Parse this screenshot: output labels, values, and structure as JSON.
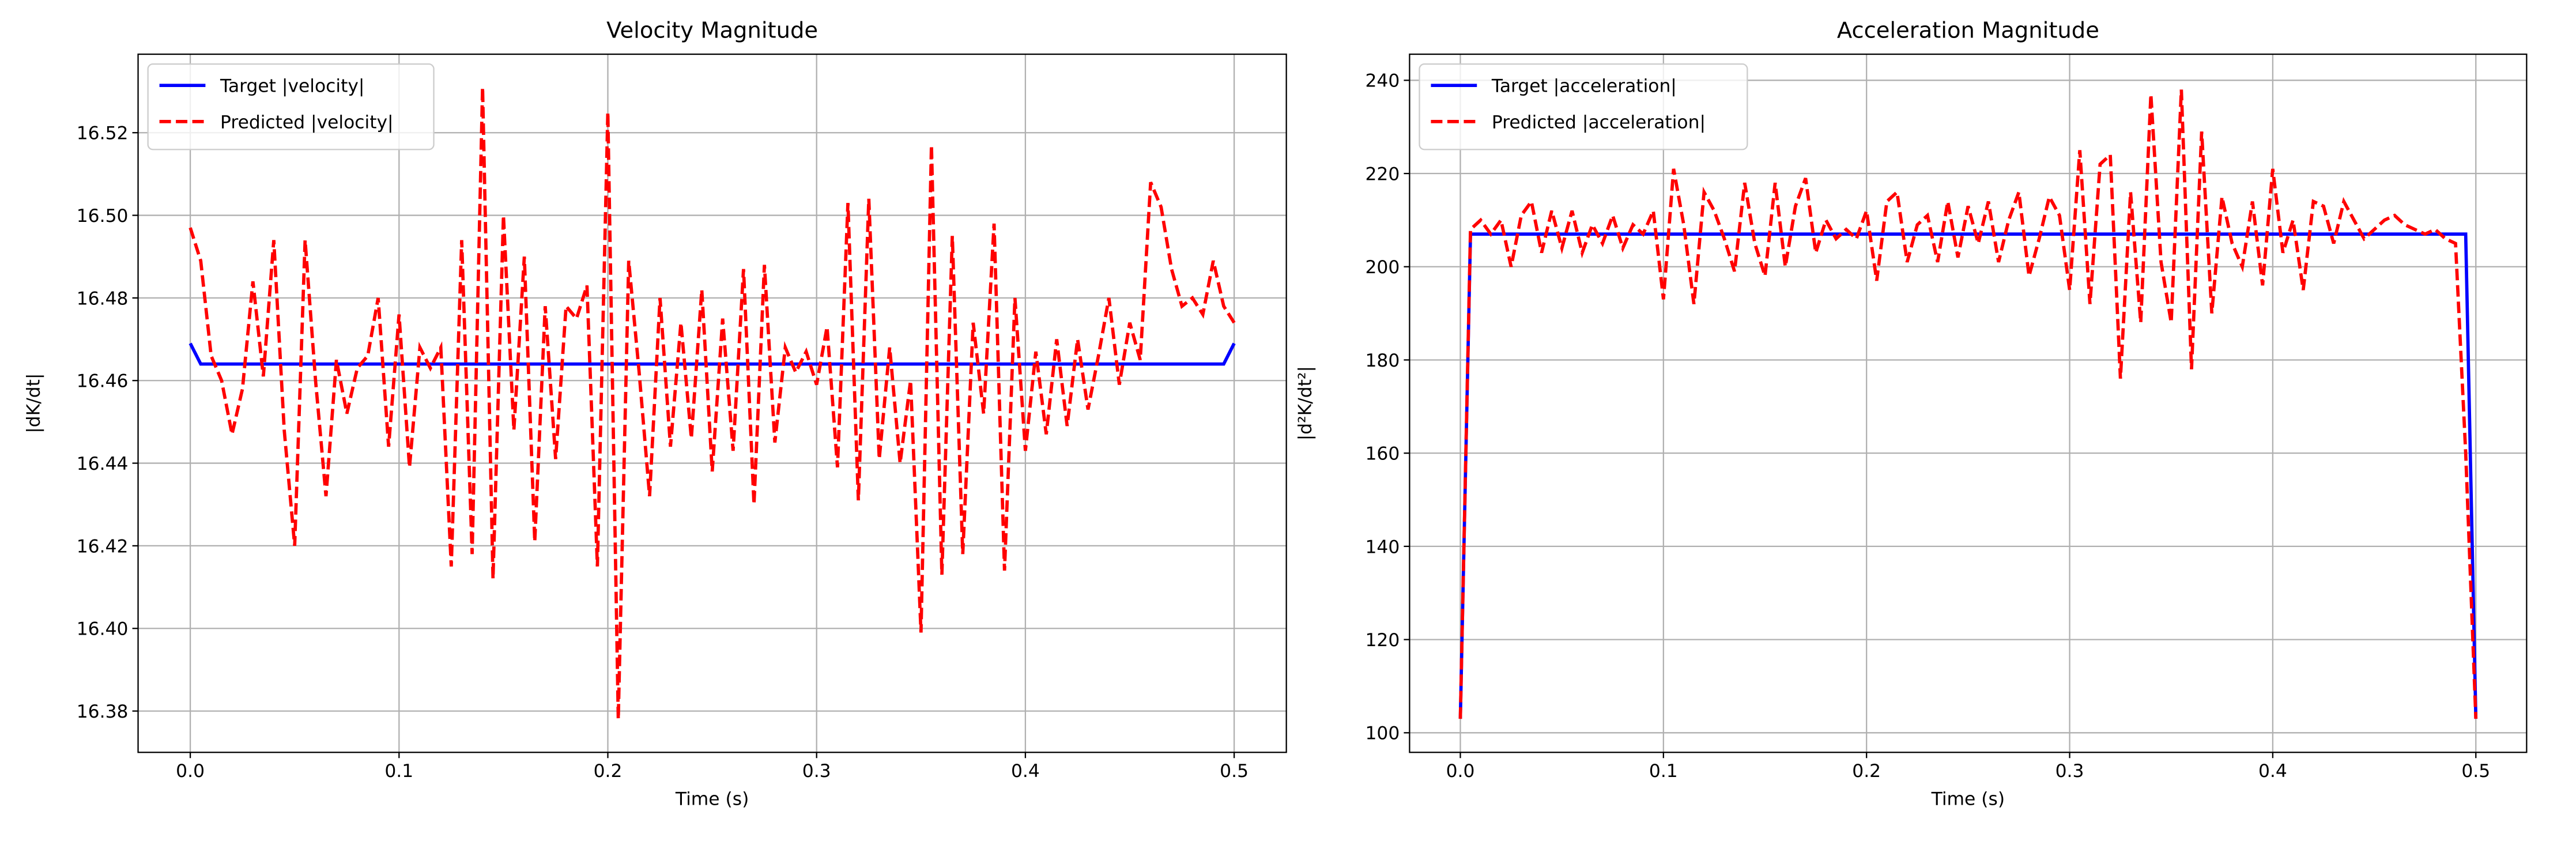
{
  "chart_data": [
    {
      "type": "line",
      "title": "Velocity Magnitude",
      "xlabel": "Time (s)",
      "ylabel": "|dK/dt|",
      "xlim": [
        -0.025,
        0.525
      ],
      "ylim": [
        16.37,
        16.539
      ],
      "xticks": [
        {
          "value": 0,
          "label": "0.0"
        },
        0.1,
        0.2,
        0.3,
        0.4,
        0.5
      ],
      "yticks": [
        16.38,
        {
          "value": 16.4,
          "label": "16.40"
        },
        16.42,
        16.44,
        16.46,
        16.48,
        {
          "value": 16.5,
          "label": "16.50"
        },
        16.52
      ],
      "grid": true,
      "legend": "upper left",
      "x": [
        0,
        0.005,
        0.01,
        0.015,
        0.02,
        0.025,
        0.03,
        0.035,
        0.04,
        0.045,
        0.05,
        0.055,
        0.06,
        0.065,
        0.07,
        0.075,
        0.08,
        0.085,
        0.09,
        0.095,
        0.1,
        0.105,
        0.11,
        0.115,
        0.12,
        0.125,
        0.13,
        0.135,
        0.14,
        0.145,
        0.15,
        0.155,
        0.16,
        0.165,
        0.17,
        0.175,
        0.18,
        0.185,
        0.19,
        0.195,
        0.2,
        0.205,
        0.21,
        0.215,
        0.22,
        0.225,
        0.23,
        0.235,
        0.24,
        0.245,
        0.25,
        0.255,
        0.26,
        0.265,
        0.27,
        0.275,
        0.28,
        0.285,
        0.29,
        0.295,
        0.3,
        0.305,
        0.31,
        0.315,
        0.32,
        0.325,
        0.33,
        0.335,
        0.34,
        0.345,
        0.35,
        0.355,
        0.36,
        0.365,
        0.37,
        0.375,
        0.38,
        0.385,
        0.39,
        0.395,
        0.4,
        0.405,
        0.41,
        0.415,
        0.42,
        0.425,
        0.43,
        0.435,
        0.44,
        0.445,
        0.45,
        0.455,
        0.46,
        0.465,
        0.47,
        0.475,
        0.48,
        0.485,
        0.49,
        0.495,
        0.5
      ],
      "series": [
        {
          "name": "Target |velocity|",
          "color": "#0000ff",
          "linestyle": "solid",
          "values": [
            16.469,
            16.464,
            16.464,
            16.464,
            16.464,
            16.464,
            16.464,
            16.464,
            16.464,
            16.464,
            16.464,
            16.464,
            16.464,
            16.464,
            16.464,
            16.464,
            16.464,
            16.464,
            16.464,
            16.464,
            16.464,
            16.464,
            16.464,
            16.464,
            16.464,
            16.464,
            16.464,
            16.464,
            16.464,
            16.464,
            16.464,
            16.464,
            16.464,
            16.464,
            16.464,
            16.464,
            16.464,
            16.464,
            16.464,
            16.464,
            16.464,
            16.464,
            16.464,
            16.464,
            16.464,
            16.464,
            16.464,
            16.464,
            16.464,
            16.464,
            16.464,
            16.464,
            16.464,
            16.464,
            16.464,
            16.464,
            16.464,
            16.464,
            16.464,
            16.464,
            16.464,
            16.464,
            16.464,
            16.464,
            16.464,
            16.464,
            16.464,
            16.464,
            16.464,
            16.464,
            16.464,
            16.464,
            16.464,
            16.464,
            16.464,
            16.464,
            16.464,
            16.464,
            16.464,
            16.464,
            16.464,
            16.464,
            16.464,
            16.464,
            16.464,
            16.464,
            16.464,
            16.464,
            16.464,
            16.464,
            16.464,
            16.464,
            16.464,
            16.464,
            16.464,
            16.464,
            16.464,
            16.464,
            16.464,
            16.464,
            16.469
          ]
        },
        {
          "name": "Predicted |velocity|",
          "color": "#ff0000",
          "linestyle": "dashed",
          "values": [
            16.497,
            16.489,
            16.466,
            16.46,
            16.447,
            16.458,
            16.484,
            16.461,
            16.494,
            16.448,
            16.42,
            16.494,
            16.46,
            16.432,
            16.465,
            16.452,
            16.463,
            16.466,
            16.48,
            16.444,
            16.476,
            16.439,
            16.468,
            16.463,
            16.468,
            16.415,
            16.494,
            16.418,
            16.531,
            16.412,
            16.5,
            16.448,
            16.49,
            16.421,
            16.478,
            16.441,
            16.478,
            16.475,
            16.483,
            16.415,
            16.525,
            16.378,
            16.489,
            16.462,
            16.432,
            16.48,
            16.444,
            16.474,
            16.446,
            16.482,
            16.438,
            16.475,
            16.443,
            16.487,
            16.43,
            16.488,
            16.445,
            16.468,
            16.462,
            16.467,
            16.459,
            16.473,
            16.439,
            16.503,
            16.431,
            16.504,
            16.441,
            16.468,
            16.44,
            16.46,
            16.399,
            16.517,
            16.413,
            16.495,
            16.418,
            16.474,
            16.452,
            16.498,
            16.414,
            16.48,
            16.443,
            16.467,
            16.447,
            16.47,
            16.449,
            16.47,
            16.453,
            16.466,
            16.48,
            16.459,
            16.474,
            16.465,
            16.508,
            16.502,
            16.487,
            16.478,
            16.48,
            16.476,
            16.489,
            16.478,
            16.474
          ]
        }
      ]
    },
    {
      "type": "line",
      "title": "Acceleration Magnitude",
      "xlabel": "Time (s)",
      "ylabel": "|d²K/dt²|",
      "xlim": [
        -0.025,
        0.525
      ],
      "ylim": [
        95.8,
        245.6
      ],
      "xticks": [
        {
          "value": 0,
          "label": "0.0"
        },
        0.1,
        0.2,
        0.3,
        0.4,
        0.5
      ],
      "yticks": [
        100,
        120,
        140,
        160,
        180,
        200,
        220,
        240
      ],
      "grid": true,
      "legend": "upper left",
      "x": [
        0,
        0.005,
        0.01,
        0.015,
        0.02,
        0.025,
        0.03,
        0.035,
        0.04,
        0.045,
        0.05,
        0.055,
        0.06,
        0.065,
        0.07,
        0.075,
        0.08,
        0.085,
        0.09,
        0.095,
        0.1,
        0.105,
        0.11,
        0.115,
        0.12,
        0.125,
        0.13,
        0.135,
        0.14,
        0.145,
        0.15,
        0.155,
        0.16,
        0.165,
        0.17,
        0.175,
        0.18,
        0.185,
        0.19,
        0.195,
        0.2,
        0.205,
        0.21,
        0.215,
        0.22,
        0.225,
        0.23,
        0.235,
        0.24,
        0.245,
        0.25,
        0.255,
        0.26,
        0.265,
        0.27,
        0.275,
        0.28,
        0.285,
        0.29,
        0.295,
        0.3,
        0.305,
        0.31,
        0.315,
        0.32,
        0.325,
        0.33,
        0.335,
        0.34,
        0.345,
        0.35,
        0.355,
        0.36,
        0.365,
        0.37,
        0.375,
        0.38,
        0.385,
        0.39,
        0.395,
        0.4,
        0.405,
        0.41,
        0.415,
        0.42,
        0.425,
        0.43,
        0.435,
        0.44,
        0.445,
        0.45,
        0.455,
        0.46,
        0.465,
        0.47,
        0.475,
        0.48,
        0.485,
        0.49,
        0.495,
        0.5
      ],
      "series": [
        {
          "name": "Target |acceleration|",
          "color": "#0000ff",
          "linestyle": "solid",
          "values": [
            103,
            207,
            207,
            207,
            207,
            207,
            207,
            207,
            207,
            207,
            207,
            207,
            207,
            207,
            207,
            207,
            207,
            207,
            207,
            207,
            207,
            207,
            207,
            207,
            207,
            207,
            207,
            207,
            207,
            207,
            207,
            207,
            207,
            207,
            207,
            207,
            207,
            207,
            207,
            207,
            207,
            207,
            207,
            207,
            207,
            207,
            207,
            207,
            207,
            207,
            207,
            207,
            207,
            207,
            207,
            207,
            207,
            207,
            207,
            207,
            207,
            207,
            207,
            207,
            207,
            207,
            207,
            207,
            207,
            207,
            207,
            207,
            207,
            207,
            207,
            207,
            207,
            207,
            207,
            207,
            207,
            207,
            207,
            207,
            207,
            207,
            207,
            207,
            207,
            207,
            207,
            207,
            207,
            207,
            207,
            207,
            207,
            207,
            207,
            207,
            103
          ]
        },
        {
          "name": "Predicted |acceleration|",
          "color": "#ff0000",
          "linestyle": "dashed",
          "values": [
            103,
            208,
            210,
            207,
            210,
            200,
            211,
            214,
            203,
            212,
            204,
            212,
            203,
            209,
            205,
            211,
            204,
            209,
            207,
            212,
            193,
            221,
            209,
            192,
            216,
            212,
            206,
            199,
            218,
            205,
            198,
            218,
            200,
            213,
            219,
            203,
            210,
            206,
            208,
            206,
            212,
            197,
            214,
            216,
            201,
            209,
            211,
            201,
            214,
            202,
            213,
            205,
            214,
            201,
            210,
            216,
            198,
            206,
            215,
            211,
            195,
            225,
            192,
            222,
            224,
            176,
            216,
            188,
            237,
            201,
            188,
            238,
            178,
            229,
            190,
            215,
            205,
            200,
            214,
            196,
            221,
            203,
            210,
            195,
            214,
            213,
            205,
            214,
            210,
            206,
            208,
            210,
            211,
            209,
            208,
            207,
            208,
            206,
            205,
            160,
            103
          ]
        }
      ]
    }
  ]
}
